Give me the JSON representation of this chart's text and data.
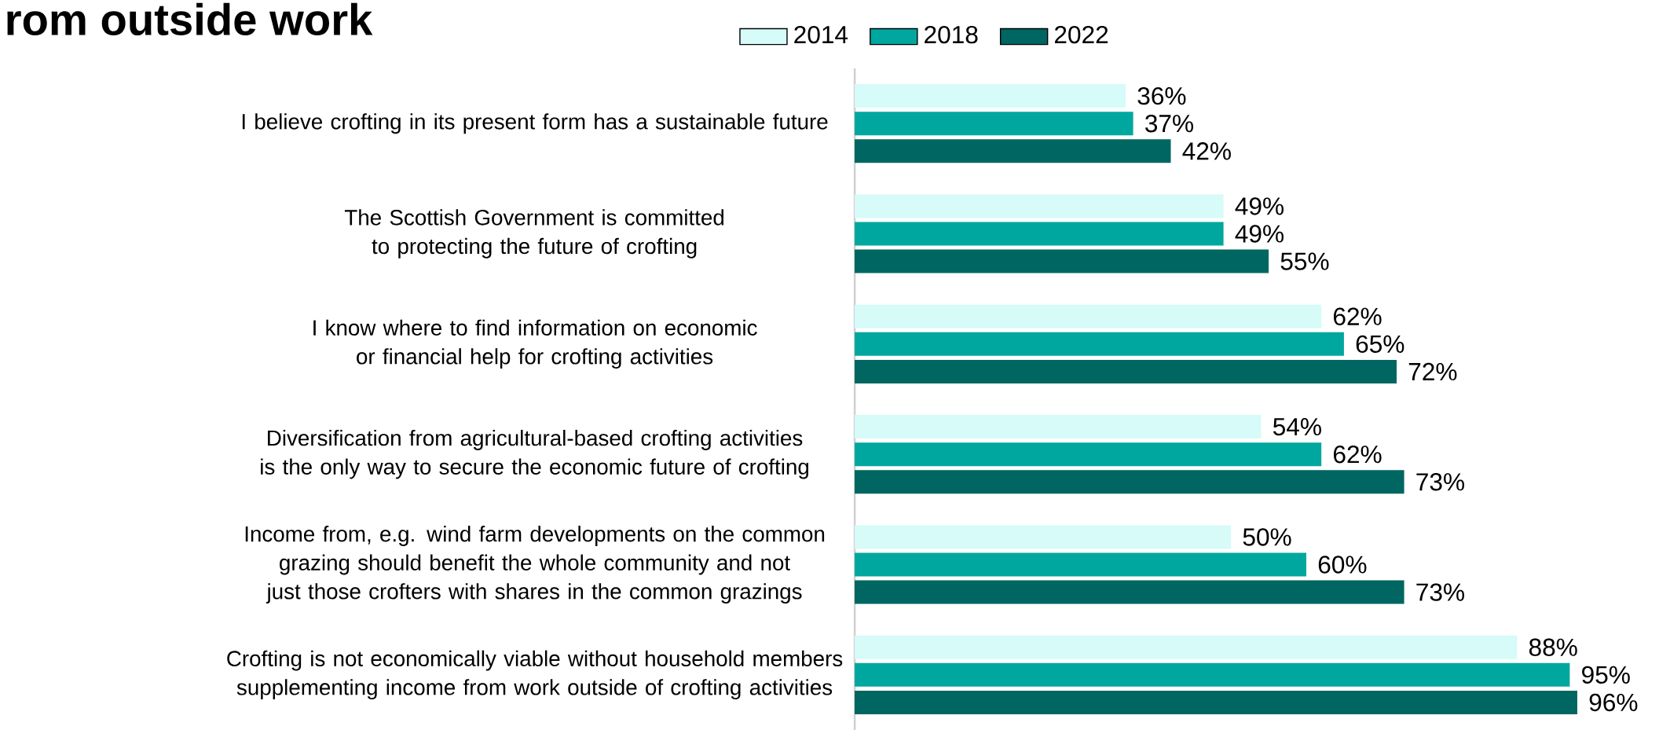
{
  "chart_data": {
    "type": "bar",
    "orientation": "horizontal",
    "title": "rom outside work",
    "categories": [
      "I believe crofting in its present form has a sustainable future",
      "The Scottish Government is committed to protecting the future of crofting",
      "I know where to find information on economic or financial help for crofting activities",
      "Diversification from agricultural-based crofting activities is the only way to secure the economic future of crofting",
      "Income from, e.g. wind farm developments on the common grazing should benefit the whole community and not just those crofters with shares in the common grazings",
      "Crofting is not economically viable without household members supplementing income from work outside of crofting activities"
    ],
    "series": [
      {
        "name": "2014",
        "color": "#d6fbf8",
        "values": [
          36,
          49,
          62,
          54,
          50,
          88
        ],
        "value_labels": [
          "36%",
          "49%",
          "62%",
          "54%",
          "50%",
          "88%"
        ]
      },
      {
        "name": "2018",
        "color": "#00a79f",
        "values": [
          37,
          49,
          65,
          62,
          60,
          95
        ],
        "value_labels": [
          "37%",
          "49%",
          "65%",
          "62%",
          "60%",
          "95%"
        ]
      },
      {
        "name": "2022",
        "color": "#006661",
        "values": [
          42,
          55,
          72,
          73,
          73,
          96
        ],
        "value_labels": [
          "42%",
          "55%",
          "72%",
          "73%",
          "73%",
          "96%"
        ]
      }
    ],
    "legend": "top"
  }
}
